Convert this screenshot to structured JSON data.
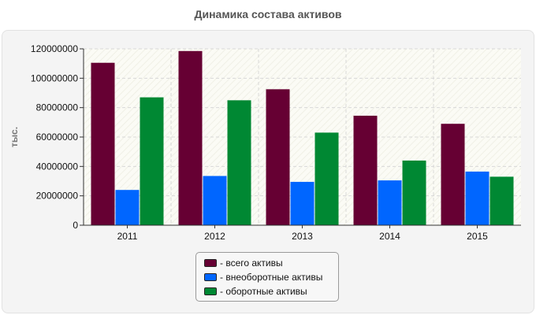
{
  "chart_data": {
    "type": "bar",
    "title": "Динамика состава активов",
    "xlabel": "",
    "ylabel": "тыс.",
    "categories": [
      "2011",
      "2012",
      "2013",
      "2014",
      "2015"
    ],
    "ylim": [
      0,
      120000000
    ],
    "yticks": [
      0,
      20000000,
      40000000,
      60000000,
      80000000,
      100000000,
      120000000
    ],
    "ytick_labels": [
      "0",
      "20000000",
      "40000000",
      "60000000",
      "80000000",
      "100000000",
      "120000000"
    ],
    "grid": true,
    "legend_position": "bottom-center",
    "series": [
      {
        "name": "- всего активы",
        "color": "#660033",
        "values": [
          110500000,
          118500000,
          92500000,
          74500000,
          69000000
        ]
      },
      {
        "name": "- внеоборотные активы",
        "color": "#0066ff",
        "values": [
          24000000,
          33500000,
          29500000,
          30500000,
          36500000
        ]
      },
      {
        "name": "- оборотные активы",
        "color": "#008833",
        "values": [
          87000000,
          85000000,
          63000000,
          44000000,
          33000000
        ]
      }
    ]
  }
}
